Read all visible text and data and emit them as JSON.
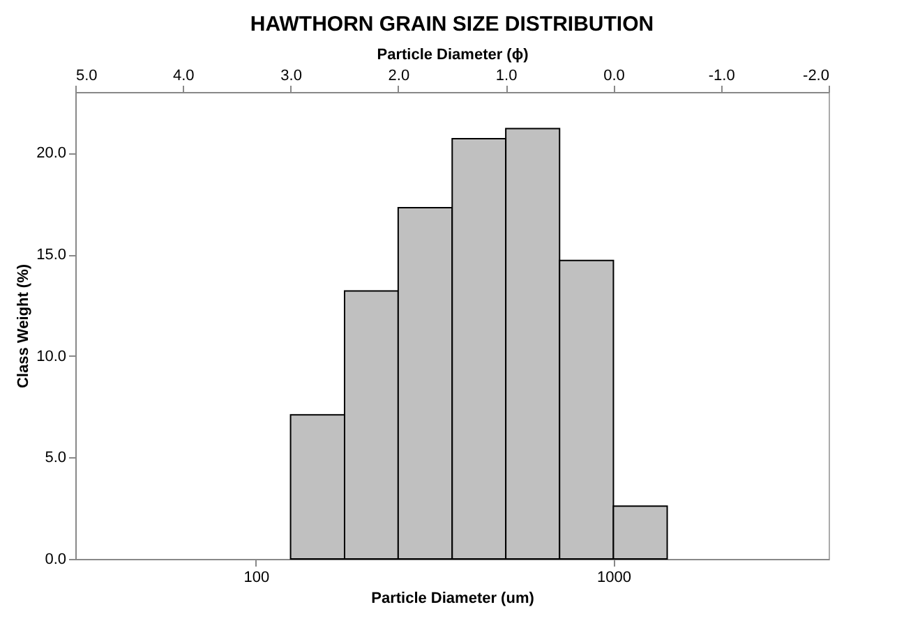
{
  "chart_data": {
    "type": "histogram",
    "title": "HAWTHORN GRAIN SIZE DISTRIBUTION",
    "xlabel": "Particle Diameter (um)",
    "x2label": "Particle Diameter (ϕ)",
    "ylabel": "Class Weight (%)",
    "bins": [
      125,
      177,
      250,
      354,
      500,
      707,
      1000,
      1414
    ],
    "values": [
      7.1,
      13.2,
      17.3,
      20.7,
      21.2,
      14.7,
      2.6
    ],
    "color": "#c0c0c0",
    "log": "x",
    "xlim": [
      31.25,
      4000
    ],
    "xticks": [
      100,
      1000
    ],
    "x2lim": [
      5.0,
      -2.0
    ],
    "x2ticks": [
      {
        "value": 5,
        "label": "5.0"
      },
      {
        "value": 4,
        "label": "4.0"
      },
      {
        "value": 3,
        "label": "3.0"
      },
      {
        "value": 2,
        "label": "2.0"
      },
      {
        "value": 1,
        "label": "1.0"
      },
      {
        "value": 0,
        "label": "0.0"
      },
      {
        "value": -1,
        "label": "-1.0"
      },
      {
        "value": -2,
        "label": "-2.0"
      }
    ],
    "ylim": [
      0,
      23
    ],
    "yticks": [
      {
        "value": 0,
        "label": "0.0"
      },
      {
        "value": 5,
        "label": "5.0"
      },
      {
        "value": 10,
        "label": "10.0"
      },
      {
        "value": 15,
        "label": "15.0"
      },
      {
        "value": 20,
        "label": "20.0"
      }
    ],
    "grid": false
  }
}
